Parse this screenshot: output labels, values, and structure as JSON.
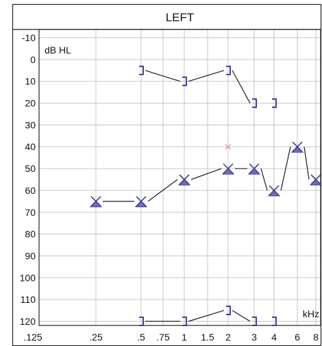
{
  "chart_data": {
    "type": "scatter",
    "title": "LEFT",
    "ylabel": "dB HL",
    "xlabel": "kHz",
    "y_reversed": true,
    "ylim": [
      -10,
      120
    ],
    "y_ticks": [
      "-10",
      "0",
      "10",
      "20",
      "30",
      "40",
      "50",
      "60",
      "70",
      "80",
      "90",
      "100",
      "110",
      "120"
    ],
    "x_ticks": [
      ".125",
      ".25",
      ".5",
      ".75",
      "1",
      "1.5",
      "2",
      "3",
      "4",
      "6",
      "8"
    ],
    "grid": true,
    "colors": {
      "frame": "#222222",
      "grid": "#bfbfbf",
      "line": "#1a1a1a",
      "triangle_fill": "#6f6fb8",
      "triangle_stroke": "#3e3e90",
      "bracket": "#2d2d85",
      "artifact": "#d27a8c"
    },
    "series": [
      {
        "marker": "masked-air-conduction-triangle-x",
        "points": [
          {
            "x": ".25",
            "y": 65
          },
          {
            "x": ".5",
            "y": 65
          },
          {
            "x": "1",
            "y": 55
          },
          {
            "x": "2",
            "y": 50
          },
          {
            "x": "3",
            "y": 50
          },
          {
            "x": "4",
            "y": 60
          },
          {
            "x": "6",
            "y": 40
          },
          {
            "x": "8",
            "y": 55
          }
        ]
      },
      {
        "marker": "masked-bone-conduction-bracket",
        "points": [
          {
            "x": ".5",
            "y": 5
          },
          {
            "x": "1",
            "y": 10
          },
          {
            "x": "2",
            "y": 5
          },
          {
            "x": "3",
            "y": 20
          },
          {
            "x": "4",
            "y": 20
          }
        ],
        "connected": [
          [
            0,
            1
          ],
          [
            1,
            2
          ],
          [
            2,
            3
          ]
        ]
      },
      {
        "marker": "no-response-bracket",
        "points": [
          {
            "x": ".5",
            "y": 120
          },
          {
            "x": "1",
            "y": 120
          },
          {
            "x": "2",
            "y": 115
          },
          {
            "x": "3",
            "y": 120
          },
          {
            "x": "4",
            "y": 120
          }
        ],
        "connected": [
          [
            0,
            1
          ],
          [
            1,
            2
          ],
          [
            2,
            3
          ]
        ]
      }
    ],
    "annotations": [
      {
        "marker": "faint-mark",
        "x": "2",
        "y": 40
      }
    ]
  }
}
